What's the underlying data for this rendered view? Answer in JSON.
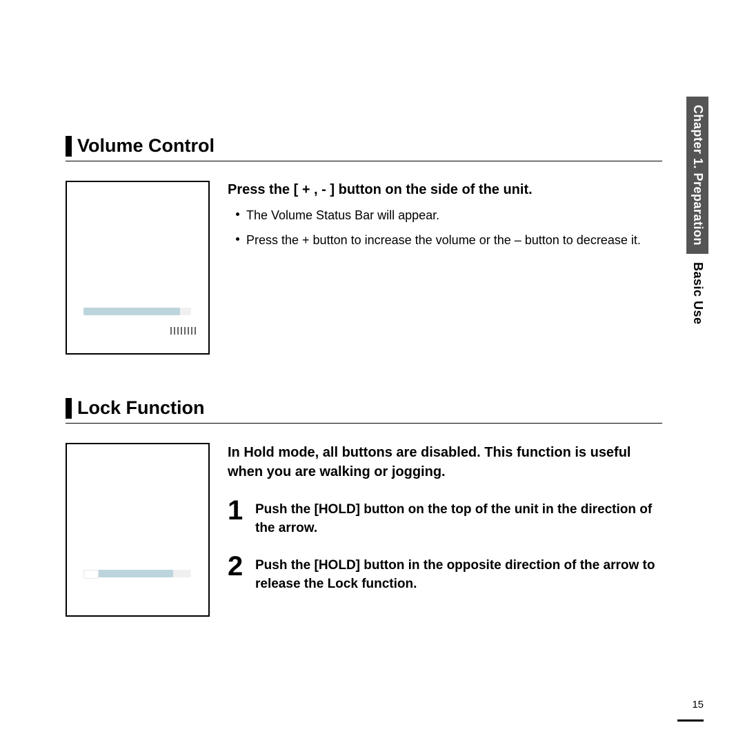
{
  "sidebar": {
    "chapter_label": "Chapter 1. Preparation",
    "section_label": "Basic Use",
    "dark_bg": "#555555",
    "dark_fg": "#ffffff"
  },
  "page_number": "15",
  "sections": {
    "volume": {
      "title": "Volume Control",
      "instruction": "Press the [ + , - ] button on the side of the unit.",
      "bullets": [
        "The Volume Status Bar will appear.",
        "Press the + button to increase the volume or the – button to decrease it."
      ],
      "bar_color": "#bcd4dc"
    },
    "lock": {
      "title": "Lock Function",
      "intro": "In Hold mode, all buttons are disabled. This function is useful when you are walking or jogging.",
      "steps": [
        {
          "num": "1",
          "text": "Push the [HOLD] button on the top of the unit in the direction of the arrow."
        },
        {
          "num": "2",
          "text": "Push the [HOLD] button in the opposite direction of the arrow to release the Lock function."
        }
      ]
    }
  }
}
